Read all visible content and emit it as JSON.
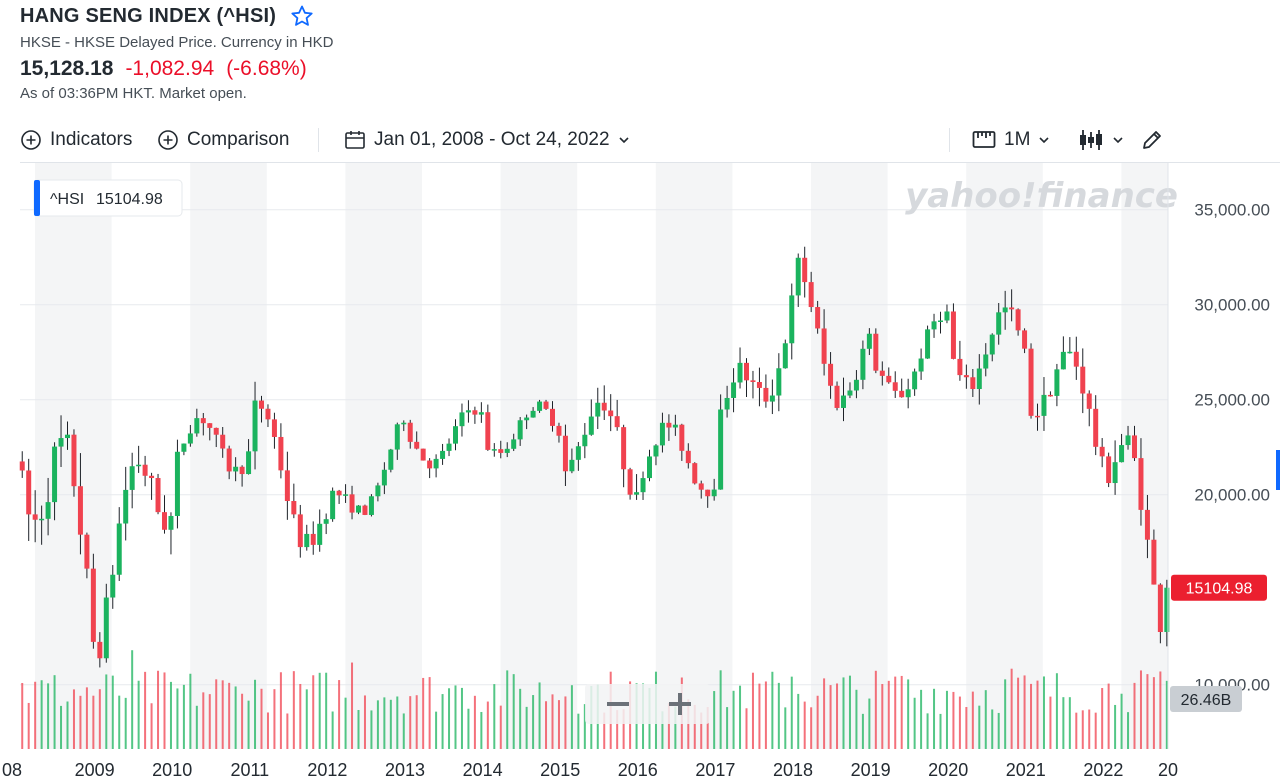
{
  "header": {
    "title": "HANG SENG INDEX (^HSI)",
    "subtitle": "HKSE - HKSE Delayed Price. Currency in HKD",
    "price": "15,128.18",
    "change": "-1,082.94",
    "change_pct": "(-6.68%)",
    "as_of": "As of 03:36PM HKT. Market open."
  },
  "toolbar": {
    "indicators_label": "Indicators",
    "comparison_label": "Comparison",
    "date_range": "Jan 01, 2008 - Oct 24, 2022",
    "interval": "1M"
  },
  "colors": {
    "up": "#1bb35e",
    "down": "#f0424f",
    "accent": "#0f69ff",
    "price_tag": "#eb1f2f"
  },
  "chart_data": {
    "type": "candlestick",
    "interval": "1M",
    "legend_label": "^HSI",
    "legend_value": "15104.98",
    "last_price_tag": "15104.98",
    "volume_tag": "26.46B",
    "watermark": "yahoo!finance",
    "y_ticks": [
      "35,000.00",
      "30,000.00",
      "25,000.00",
      "20,000.00",
      "10,000.00"
    ],
    "y_tick_values": [
      35000,
      30000,
      25000,
      20000,
      10000
    ],
    "x_ticks": [
      "08",
      "2009",
      "2010",
      "2011",
      "2012",
      "2013",
      "2014",
      "2015",
      "2016",
      "2017",
      "2018",
      "2019",
      "2020",
      "2021",
      "2022",
      "20"
    ],
    "ylim": [
      5500,
      37500
    ],
    "years": [
      {
        "year": 2008,
        "open": 25000,
        "close": 14400,
        "low": 11000,
        "high": 26500
      },
      {
        "year": 2009,
        "open": 14400,
        "close": 22000,
        "low": 11300,
        "high": 23000
      },
      {
        "year": 2010,
        "open": 22000,
        "close": 23100,
        "low": 18900,
        "high": 24900
      },
      {
        "year": 2011,
        "open": 23100,
        "close": 18400,
        "low": 16200,
        "high": 24500
      },
      {
        "year": 2012,
        "open": 18400,
        "close": 22700,
        "low": 18100,
        "high": 23000
      },
      {
        "year": 2013,
        "open": 22700,
        "close": 23300,
        "low": 19400,
        "high": 24000
      },
      {
        "year": 2014,
        "open": 23300,
        "close": 23600,
        "low": 21100,
        "high": 25300
      },
      {
        "year": 2015,
        "open": 23600,
        "close": 21900,
        "low": 20300,
        "high": 28600
      },
      {
        "year": 2016,
        "open": 21900,
        "close": 22000,
        "low": 18300,
        "high": 24400
      },
      {
        "year": 2017,
        "open": 22000,
        "close": 29900,
        "low": 21900,
        "high": 30200
      },
      {
        "year": 2018,
        "open": 29900,
        "close": 25800,
        "low": 24500,
        "high": 33500
      },
      {
        "year": 2019,
        "open": 25800,
        "close": 28200,
        "low": 24900,
        "high": 30300
      },
      {
        "year": 2020,
        "open": 28200,
        "close": 27200,
        "low": 21100,
        "high": 29200
      },
      {
        "year": 2021,
        "open": 27200,
        "close": 23400,
        "low": 22600,
        "high": 31200
      },
      {
        "year": 2022,
        "open": 23400,
        "close": 15105,
        "low": 14800,
        "high": 24400
      }
    ]
  }
}
